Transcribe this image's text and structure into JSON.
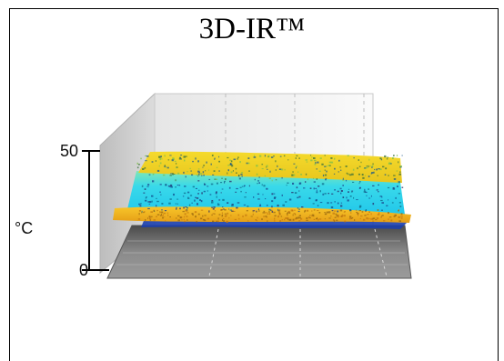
{
  "chart_data": {
    "type": "surface-3d",
    "title": "3D-IR™",
    "ylabel": "°C",
    "zlim": [
      0,
      50
    ],
    "ticks": [
      {
        "value": 50,
        "label": "50"
      },
      {
        "value": 0,
        "label": "0"
      }
    ],
    "layers": [
      {
        "name": "rear-yellow-band",
        "temperature": 44,
        "color": "#f2d21a"
      },
      {
        "name": "cyan-band",
        "temperature": 35,
        "color": "#2fd7ec"
      },
      {
        "name": "front-orange-band",
        "temperature": 24,
        "color": "#f0b21a"
      },
      {
        "name": "blue-shadow",
        "temperature": 18,
        "color": "#1b3fae"
      }
    ],
    "grid": true,
    "colors": {
      "yellow": "#f2d21a",
      "orange": "#f0b21a",
      "cyan": "#2fd7ec",
      "blue": "#1b3fae",
      "floor": "#7f7f7f"
    }
  }
}
